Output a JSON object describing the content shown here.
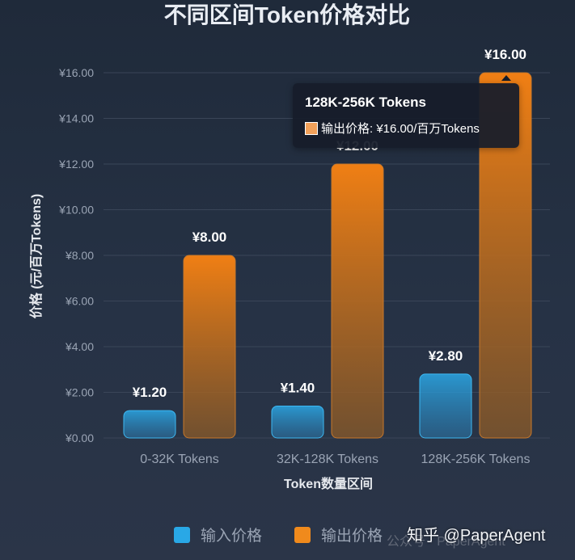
{
  "chart_data": {
    "type": "bar",
    "title": "不同区间Token价格对比",
    "xlabel": "Token数量区间",
    "ylabel": "价格 (元/百万Tokens)",
    "categories": [
      "0-32K Tokens",
      "32K-128K Tokens",
      "128K-256K Tokens"
    ],
    "series": [
      {
        "name": "输入价格",
        "values": [
          1.2,
          1.4,
          2.8
        ],
        "labels": [
          "¥1.20",
          "¥1.40",
          "¥2.80"
        ],
        "color": "#29a8e6"
      },
      {
        "name": "输出价格",
        "values": [
          8.0,
          12.0,
          16.0
        ],
        "labels": [
          "¥8.00",
          "¥12.00",
          "¥16.00"
        ],
        "color": "#f08a1c"
      }
    ],
    "ylim": [
      0,
      16
    ],
    "yticks": [
      "¥0.00",
      "¥2.00",
      "¥4.00",
      "¥6.00",
      "¥8.00",
      "¥10.00",
      "¥12.00",
      "¥14.00",
      "¥16.00"
    ],
    "grid": true,
    "legend_position": "bottom"
  },
  "tooltip": {
    "title": "128K-256K Tokens",
    "text": "输出价格: ¥16.00/百万Tokens"
  },
  "watermark": {
    "main": "知乎 @PaperAgent",
    "sub": "公众号 · PaperAgent"
  },
  "colors": {
    "input_bar": "#29a8e6",
    "output_bar": "#f08a1c",
    "title": "#e9edf3",
    "axis_label": "#e6e9ee",
    "tick": "#9aa4b4"
  }
}
